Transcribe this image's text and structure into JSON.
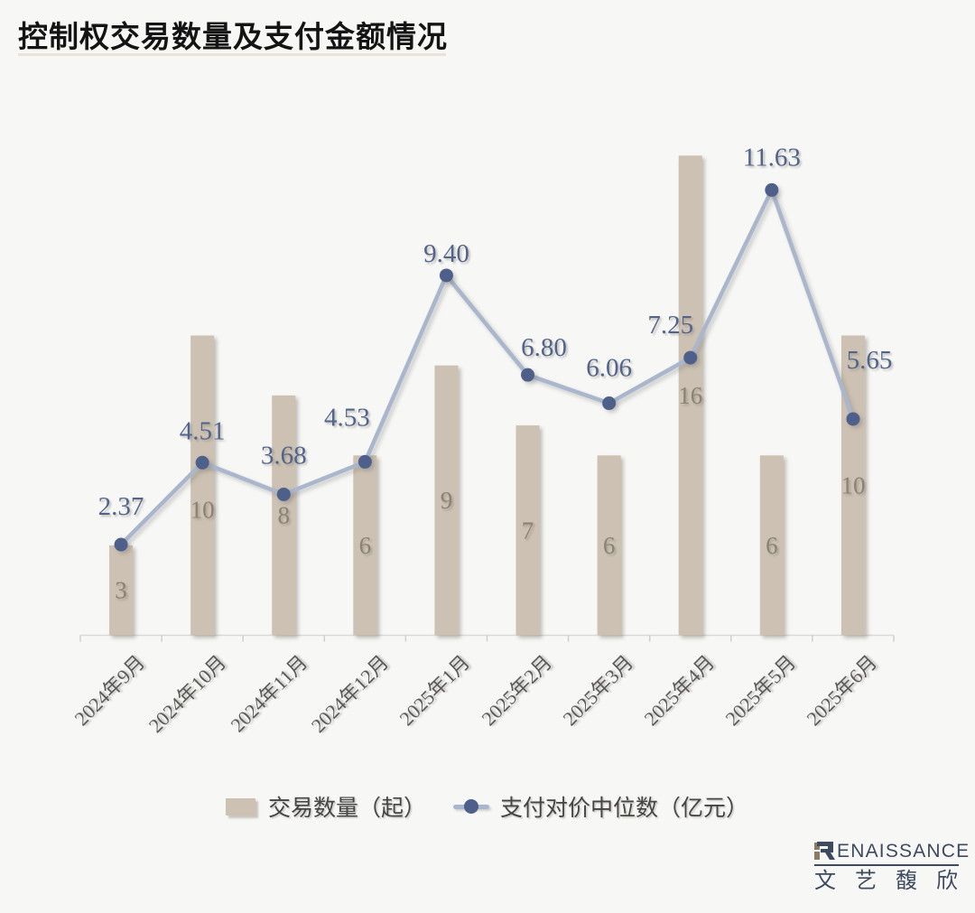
{
  "page": {
    "title": "控制权交易数量及支付金额情况",
    "background": "#f7f7f5"
  },
  "chart_data": {
    "type": "bar",
    "subtype": "combo-bar-line",
    "title": "控制权交易数量及支付金额情况",
    "categories": [
      "2024年9月",
      "2024年10月",
      "2024年11月",
      "2024年12月",
      "2025年1月",
      "2025年2月",
      "2025年3月",
      "2025年4月",
      "2025年5月",
      "2025年6月"
    ],
    "series": [
      {
        "name": "交易数量（起）",
        "type": "bar",
        "values": [
          3,
          10,
          8,
          6,
          9,
          7,
          6,
          16,
          6,
          10
        ],
        "color": "#ccc1b2",
        "value_label_color": "#8b8174",
        "ylim": [
          0,
          18
        ]
      },
      {
        "name": "支付对价中位数（亿元）",
        "type": "line",
        "values": [
          2.37,
          4.51,
          3.68,
          4.53,
          9.4,
          6.8,
          6.06,
          7.25,
          11.63,
          5.65
        ],
        "value_labels": [
          "2.37",
          "4.51",
          "3.68",
          "4.53",
          "9.40",
          "6.80",
          "6.06",
          "7.25",
          "11.63",
          "5.65"
        ],
        "line_color": "#a9b6cb",
        "marker_color": "#4e608a",
        "value_label_color": "#52648c",
        "ylim": [
          0,
          14
        ]
      }
    ],
    "axes": {
      "x_line_color": "#d9d9d9",
      "x_tick_color": "#cfcfcf",
      "x_label_color": "#595959",
      "y_axis_visible": false,
      "grid": false
    },
    "legend_position": "bottom"
  },
  "legend": {
    "bar_label": "交易数量（起）",
    "line_label": "支付对价中位数（亿元）"
  },
  "logo": {
    "brand": "RENAISSANCE",
    "brand_rest": "ENAISSANCE",
    "chinese": "文艺馥欣",
    "navy": "#3d4a60",
    "brown": "#8d7a64"
  }
}
